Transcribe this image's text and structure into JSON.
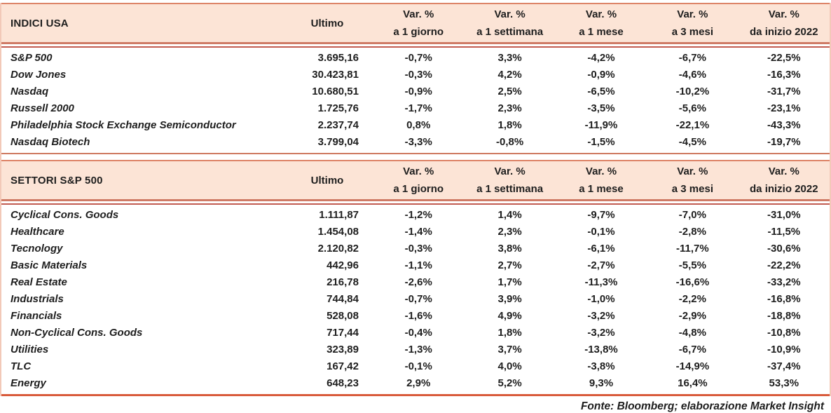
{
  "table": {
    "columns": {
      "ultimo_label": "Ultimo",
      "var_label": "Var. %",
      "var_periods": [
        "a 1 giorno",
        "a 1 settimana",
        "a 1 mese",
        "a 3 mesi",
        "da inizio 2022"
      ]
    },
    "sections": [
      {
        "title": "INDICI USA",
        "rows": [
          {
            "name": "S&P 500",
            "ultimo": "3.695,16",
            "vars": [
              "-0,7%",
              "3,3%",
              "-4,2%",
              "-6,7%",
              "-22,5%"
            ]
          },
          {
            "name": "Dow Jones",
            "ultimo": "30.423,81",
            "vars": [
              "-0,3%",
              "4,2%",
              "-0,9%",
              "-4,6%",
              "-16,3%"
            ]
          },
          {
            "name": "Nasdaq",
            "ultimo": "10.680,51",
            "vars": [
              "-0,9%",
              "2,5%",
              "-6,5%",
              "-10,2%",
              "-31,7%"
            ]
          },
          {
            "name": "Russell 2000",
            "ultimo": "1.725,76",
            "vars": [
              "-1,7%",
              "2,3%",
              "-3,5%",
              "-5,6%",
              "-23,1%"
            ]
          },
          {
            "name": "Philadelphia Stock Exchange Semiconductor",
            "ultimo": "2.237,74",
            "vars": [
              "0,8%",
              "1,8%",
              "-11,9%",
              "-22,1%",
              "-43,3%"
            ]
          },
          {
            "name": "Nasdaq Biotech",
            "ultimo": "3.799,04",
            "vars": [
              "-3,3%",
              "-0,8%",
              "-1,5%",
              "-4,5%",
              "-19,7%"
            ]
          }
        ]
      },
      {
        "title": "SETTORI S&P 500",
        "rows": [
          {
            "name": "Cyclical Cons. Goods",
            "ultimo": "1.111,87",
            "vars": [
              "-1,2%",
              "1,4%",
              "-9,7%",
              "-7,0%",
              "-31,0%"
            ]
          },
          {
            "name": "Healthcare",
            "ultimo": "1.454,08",
            "vars": [
              "-1,4%",
              "2,3%",
              "-0,1%",
              "-2,8%",
              "-11,5%"
            ]
          },
          {
            "name": "Tecnology",
            "ultimo": "2.120,82",
            "vars": [
              "-0,3%",
              "3,8%",
              "-6,1%",
              "-11,7%",
              "-30,6%"
            ]
          },
          {
            "name": "Basic Materials",
            "ultimo": "442,96",
            "vars": [
              "-1,1%",
              "2,7%",
              "-2,7%",
              "-5,5%",
              "-22,2%"
            ]
          },
          {
            "name": "Real Estate",
            "ultimo": "216,78",
            "vars": [
              "-2,6%",
              "1,7%",
              "-11,3%",
              "-16,6%",
              "-33,2%"
            ]
          },
          {
            "name": "Industrials",
            "ultimo": "744,84",
            "vars": [
              "-0,7%",
              "3,9%",
              "-1,0%",
              "-2,2%",
              "-16,8%"
            ]
          },
          {
            "name": "Financials",
            "ultimo": "528,08",
            "vars": [
              "-1,6%",
              "4,9%",
              "-3,2%",
              "-2,9%",
              "-18,8%"
            ]
          },
          {
            "name": "Non-Cyclical Cons. Goods",
            "ultimo": "717,44",
            "vars": [
              "-0,4%",
              "1,8%",
              "-3,2%",
              "-4,8%",
              "-10,8%"
            ]
          },
          {
            "name": "Utilities",
            "ultimo": "323,89",
            "vars": [
              "-1,3%",
              "3,7%",
              "-13,8%",
              "-6,7%",
              "-10,9%"
            ]
          },
          {
            "name": "TLC",
            "ultimo": "167,42",
            "vars": [
              "-0,1%",
              "4,0%",
              "-3,8%",
              "-14,9%",
              "-37,4%"
            ]
          },
          {
            "name": "Energy",
            "ultimo": "648,23",
            "vars": [
              "2,9%",
              "5,2%",
              "9,3%",
              "16,4%",
              "53,3%"
            ]
          }
        ]
      }
    ],
    "footer": "Fonte: Bloomberg; elaborazione Market Insight",
    "colors": {
      "band_bg": "#fce4d6",
      "band_top_line": "#dd8468",
      "double_line_top": "#cf7b66",
      "double_line_bottom": "#c25b50",
      "section_end_line": "#cf7a61",
      "bottom_line": "#d95b3c",
      "side_border": "#f2c9b8",
      "text": "#1e1e1e"
    }
  }
}
